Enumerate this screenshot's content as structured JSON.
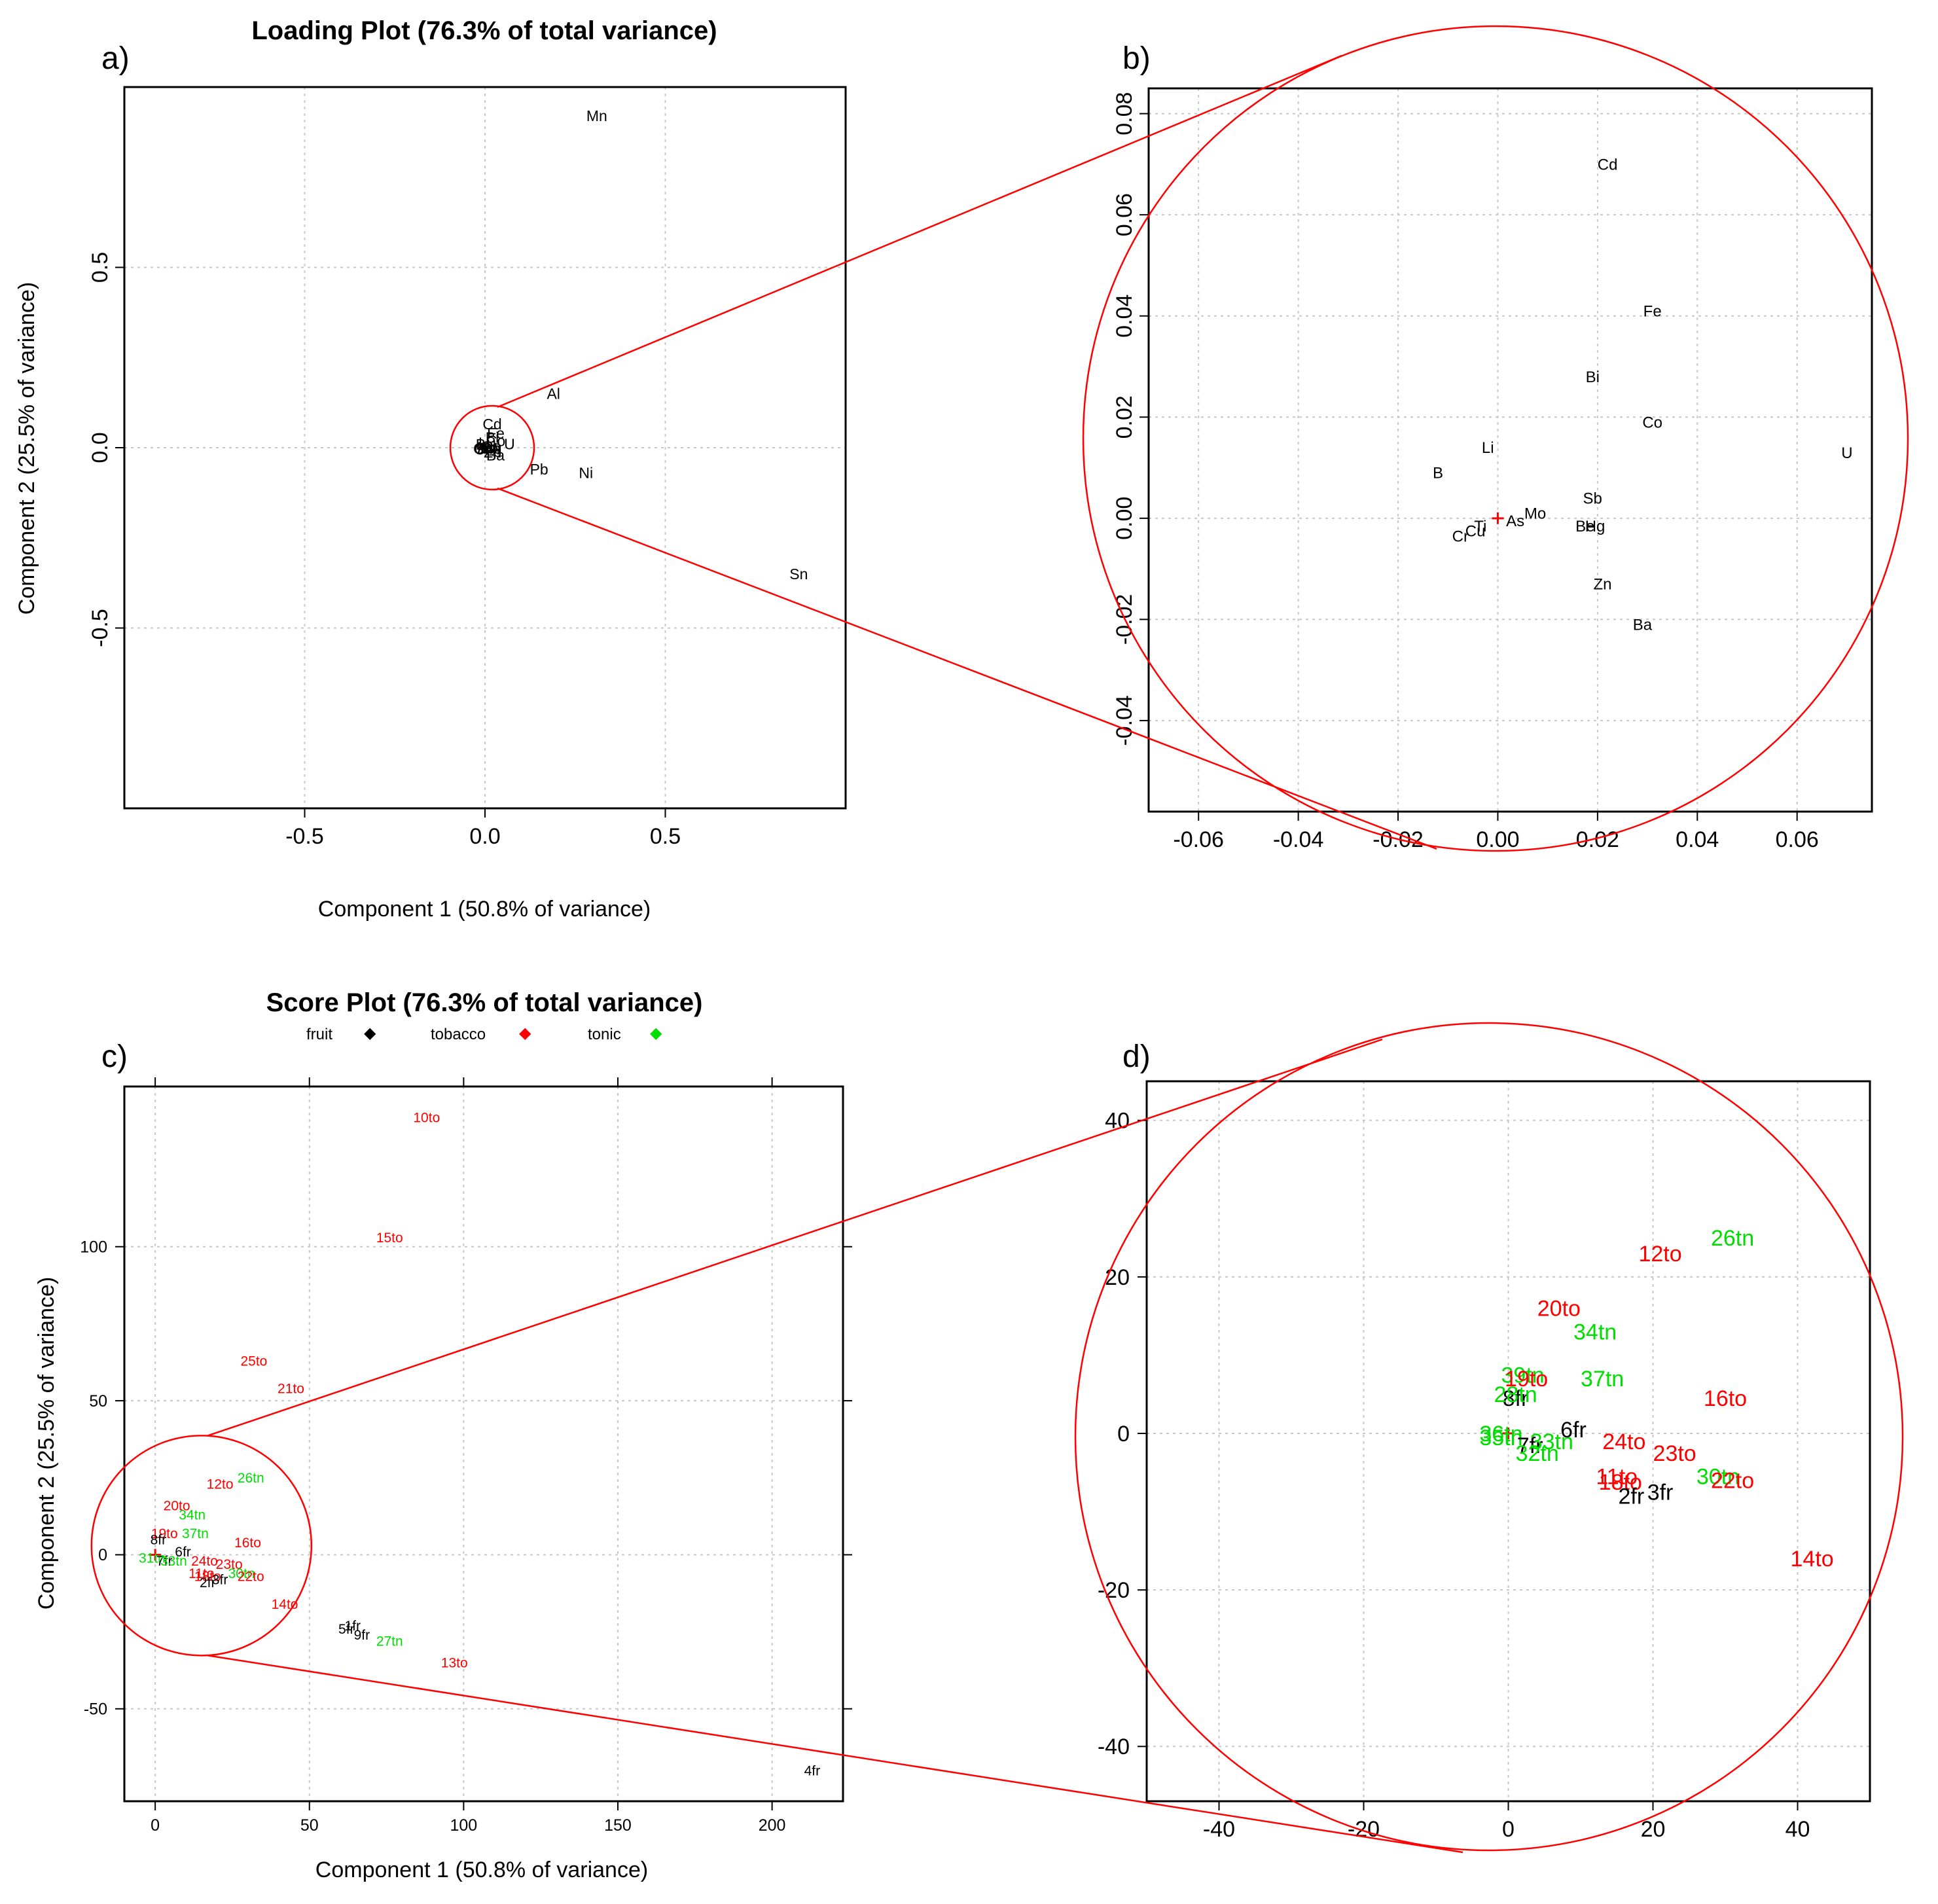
{
  "panel_labels": {
    "a": "a)",
    "b": "b)",
    "c": "c)",
    "d": "d)"
  },
  "colors": {
    "fruit": "#000000",
    "tobacco": "#ff0000",
    "tonic": "#00dd00",
    "zoom": "#ff0000",
    "grid": "#c8c8c8"
  },
  "chart_data": [
    {
      "id": "a",
      "type": "scatter",
      "title": "Loading Plot (76.3% of total variance)",
      "xlabel": "Component 1 (50.8% of variance)",
      "ylabel": "Component 2 (25.5% of variance)",
      "xlim": [
        -1.0,
        1.0
      ],
      "ylim": [
        -1.0,
        1.0
      ],
      "xticks": [
        -0.5,
        0.0,
        0.5
      ],
      "xticklabels": [
        "-0.5",
        "0.0",
        "0.5"
      ],
      "yticks": [
        -0.5,
        0.0,
        0.5
      ],
      "yticklabels": [
        "-0.5",
        "0.0",
        "0.5"
      ],
      "points": [
        {
          "label": "Mn",
          "x": 0.31,
          "y": 0.92
        },
        {
          "label": "Al",
          "x": 0.19,
          "y": 0.15
        },
        {
          "label": "Cd",
          "x": 0.02,
          "y": 0.065
        },
        {
          "label": "Fe",
          "x": 0.03,
          "y": 0.04
        },
        {
          "label": "Bi",
          "x": 0.02,
          "y": 0.028
        },
        {
          "label": "Co",
          "x": 0.03,
          "y": 0.019
        },
        {
          "label": "U",
          "x": 0.068,
          "y": 0.01
        },
        {
          "label": "Li",
          "x": -0.002,
          "y": 0.014
        },
        {
          "label": "B",
          "x": -0.012,
          "y": 0.009
        },
        {
          "label": "Sb",
          "x": 0.019,
          "y": 0.004
        },
        {
          "label": "Mo",
          "x": 0.007,
          "y": 0.001
        },
        {
          "label": "As",
          "x": 0.003,
          "y": -0.001
        },
        {
          "label": "Ti",
          "x": -0.004,
          "y": -0.002
        },
        {
          "label": "Cu",
          "x": -0.006,
          "y": -0.003
        },
        {
          "label": "Cr",
          "x": -0.008,
          "y": -0.004
        },
        {
          "label": "Hg",
          "x": 0.02,
          "y": -0.002
        },
        {
          "label": "Be",
          "x": 0.018,
          "y": -0.002
        },
        {
          "label": "Zn",
          "x": 0.021,
          "y": -0.013
        },
        {
          "label": "Ba",
          "x": 0.029,
          "y": -0.021
        },
        {
          "label": "Pb",
          "x": 0.15,
          "y": -0.06
        },
        {
          "label": "Ni",
          "x": 0.28,
          "y": -0.07
        },
        {
          "label": "Sn",
          "x": 0.87,
          "y": -0.35
        }
      ],
      "origin_marker": {
        "x": 0,
        "y": 0
      }
    },
    {
      "id": "b",
      "type": "scatter",
      "title": "",
      "xlabel": "",
      "ylabel": "",
      "xlim": [
        -0.07,
        0.075
      ],
      "ylim": [
        -0.058,
        0.085
      ],
      "xticks": [
        -0.06,
        -0.04,
        -0.02,
        0.0,
        0.02,
        0.04,
        0.06
      ],
      "xticklabels": [
        "-0.06",
        "-0.04",
        "-0.02",
        "0.00",
        "0.02",
        "0.04",
        "0.06"
      ],
      "yticks": [
        -0.04,
        -0.02,
        0.0,
        0.02,
        0.04,
        0.06,
        0.08
      ],
      "yticklabels": [
        "-0.04",
        "-0.02",
        "0.00",
        "0.02",
        "0.04",
        "0.06",
        "0.08"
      ],
      "points": [
        {
          "label": "Cd",
          "x": 0.022,
          "y": 0.07
        },
        {
          "label": "Fe",
          "x": 0.031,
          "y": 0.041
        },
        {
          "label": "Bi",
          "x": 0.019,
          "y": 0.028
        },
        {
          "label": "Co",
          "x": 0.031,
          "y": 0.019
        },
        {
          "label": "U",
          "x": 0.07,
          "y": 0.013
        },
        {
          "label": "Li",
          "x": -0.002,
          "y": 0.014
        },
        {
          "label": "B",
          "x": -0.012,
          "y": 0.009
        },
        {
          "label": "Sb",
          "x": 0.019,
          "y": 0.004
        },
        {
          "label": "Mo",
          "x": 0.0075,
          "y": 0.001
        },
        {
          "label": "As",
          "x": 0.0035,
          "y": -0.0005
        },
        {
          "label": "Ti",
          "x": -0.0035,
          "y": -0.0015
        },
        {
          "label": "Cu",
          "x": -0.0045,
          "y": -0.0025
        },
        {
          "label": "Cr",
          "x": -0.0075,
          "y": -0.0035
        },
        {
          "label": "Be",
          "x": 0.0175,
          "y": -0.0015
        },
        {
          "label": "Hg",
          "x": 0.0195,
          "y": -0.0015
        },
        {
          "label": "Zn",
          "x": 0.021,
          "y": -0.013
        },
        {
          "label": "Ba",
          "x": 0.029,
          "y": -0.021
        }
      ],
      "origin_marker": {
        "x": 0,
        "y": 0
      }
    },
    {
      "id": "c",
      "type": "scatter",
      "title": "Score Plot (76.3% of total variance)",
      "xlabel": "Component 1 (50.8% of variance)",
      "ylabel": "Component 2 (25.5% of variance)",
      "xlim": [
        -10,
        223
      ],
      "ylim": [
        -80,
        152
      ],
      "xticks": [
        0,
        50,
        100,
        150,
        200
      ],
      "xticklabels": [
        "0",
        "50",
        "100",
        "150",
        "200"
      ],
      "yticks": [
        -50,
        0,
        50,
        100
      ],
      "yticklabels": [
        "-50",
        "0",
        "50",
        "100"
      ],
      "legend": [
        {
          "label": "fruit",
          "group": "fruit"
        },
        {
          "label": "tobacco",
          "group": "tobacco"
        },
        {
          "label": "tonic",
          "group": "tonic"
        }
      ],
      "points": [
        {
          "label": "10to",
          "x": 88,
          "y": 142,
          "group": "tobacco"
        },
        {
          "label": "15to",
          "x": 76,
          "y": 103,
          "group": "tobacco"
        },
        {
          "label": "25to",
          "x": 32,
          "y": 63,
          "group": "tobacco"
        },
        {
          "label": "21to",
          "x": 44,
          "y": 54,
          "group": "tobacco"
        },
        {
          "label": "12to",
          "x": 21,
          "y": 23,
          "group": "tobacco"
        },
        {
          "label": "26tn",
          "x": 31,
          "y": 25,
          "group": "tonic"
        },
        {
          "label": "20to",
          "x": 7,
          "y": 16,
          "group": "tobacco"
        },
        {
          "label": "34tn",
          "x": 12,
          "y": 13,
          "group": "tonic"
        },
        {
          "label": "19to",
          "x": 3,
          "y": 7,
          "group": "tobacco"
        },
        {
          "label": "37tn",
          "x": 13,
          "y": 7,
          "group": "tonic"
        },
        {
          "label": "8fr",
          "x": 1,
          "y": 5,
          "group": "fruit"
        },
        {
          "label": "16to",
          "x": 30,
          "y": 4,
          "group": "tobacco"
        },
        {
          "label": "6fr",
          "x": 9,
          "y": 1,
          "group": "fruit"
        },
        {
          "label": "24to",
          "x": 16,
          "y": -2,
          "group": "tobacco"
        },
        {
          "label": "23to",
          "x": 24,
          "y": -3,
          "group": "tobacco"
        },
        {
          "label": "31tn",
          "x": -1,
          "y": -1,
          "group": "tonic"
        },
        {
          "label": "7fr",
          "x": 3,
          "y": -2,
          "group": "fruit"
        },
        {
          "label": "33tn",
          "x": 6,
          "y": -2,
          "group": "tonic"
        },
        {
          "label": "11to",
          "x": 15,
          "y": -6,
          "group": "tobacco"
        },
        {
          "label": "18to",
          "x": 17,
          "y": -7,
          "group": "tobacco"
        },
        {
          "label": "2fr",
          "x": 17,
          "y": -9,
          "group": "fruit"
        },
        {
          "label": "3fr",
          "x": 21,
          "y": -8,
          "group": "fruit"
        },
        {
          "label": "30tn",
          "x": 28,
          "y": -6,
          "group": "tonic"
        },
        {
          "label": "22to",
          "x": 31,
          "y": -7,
          "group": "tobacco"
        },
        {
          "label": "14to",
          "x": 42,
          "y": -16,
          "group": "tobacco"
        },
        {
          "label": "1fr",
          "x": 64,
          "y": -23,
          "group": "fruit"
        },
        {
          "label": "5fr",
          "x": 62,
          "y": -24,
          "group": "fruit"
        },
        {
          "label": "9fr",
          "x": 67,
          "y": -26,
          "group": "fruit"
        },
        {
          "label": "27tn",
          "x": 76,
          "y": -28,
          "group": "tonic"
        },
        {
          "label": "13to",
          "x": 97,
          "y": -35,
          "group": "tobacco"
        },
        {
          "label": "4fr",
          "x": 213,
          "y": -70,
          "group": "fruit"
        }
      ],
      "origin_marker": {
        "x": 0,
        "y": 0
      }
    },
    {
      "id": "d",
      "type": "scatter",
      "title": "",
      "xlabel": "",
      "ylabel": "",
      "xlim": [
        -50,
        50
      ],
      "ylim": [
        -47,
        45
      ],
      "xticks": [
        -40,
        -20,
        0,
        20,
        40
      ],
      "xticklabels": [
        "-40",
        "-20",
        "0",
        "20",
        "40"
      ],
      "yticks": [
        -40,
        -20,
        0,
        20,
        40
      ],
      "yticklabels": [
        "-40",
        "-20",
        "0",
        "20",
        "40"
      ],
      "points": [
        {
          "label": "26tn",
          "x": 31,
          "y": 25,
          "group": "tonic"
        },
        {
          "label": "12to",
          "x": 21,
          "y": 23,
          "group": "tobacco"
        },
        {
          "label": "20to",
          "x": 7,
          "y": 16,
          "group": "tobacco"
        },
        {
          "label": "34tn",
          "x": 12,
          "y": 13,
          "group": "tonic"
        },
        {
          "label": "39tn",
          "x": 2,
          "y": 7.5,
          "group": "tonic"
        },
        {
          "label": "19to",
          "x": 2.5,
          "y": 7,
          "group": "tobacco"
        },
        {
          "label": "37tn",
          "x": 13,
          "y": 7,
          "group": "tonic"
        },
        {
          "label": "8fr",
          "x": 1,
          "y": 4.5,
          "group": "fruit"
        },
        {
          "label": "28tn",
          "x": 1,
          "y": 5,
          "group": "tonic"
        },
        {
          "label": "16to",
          "x": 30,
          "y": 4.5,
          "group": "tobacco"
        },
        {
          "label": "6fr",
          "x": 9,
          "y": 0.5,
          "group": "fruit"
        },
        {
          "label": "24to",
          "x": 16,
          "y": -1,
          "group": "tobacco"
        },
        {
          "label": "23to",
          "x": 23,
          "y": -2.5,
          "group": "tobacco"
        },
        {
          "label": "36tn",
          "x": -1,
          "y": 0,
          "group": "tonic"
        },
        {
          "label": "35tn",
          "x": -1,
          "y": -0.5,
          "group": "tonic"
        },
        {
          "label": "7fr",
          "x": 3,
          "y": -1.5,
          "group": "fruit"
        },
        {
          "label": "33tn",
          "x": 6,
          "y": -1,
          "group": "tonic"
        },
        {
          "label": "32tn",
          "x": 4,
          "y": -2.5,
          "group": "tonic"
        },
        {
          "label": "11to",
          "x": 15,
          "y": -5.5,
          "group": "tobacco"
        },
        {
          "label": "18to",
          "x": 15.5,
          "y": -6.2,
          "group": "tobacco"
        },
        {
          "label": "2fr",
          "x": 17,
          "y": -8,
          "group": "fruit"
        },
        {
          "label": "3fr",
          "x": 21,
          "y": -7.5,
          "group": "fruit"
        },
        {
          "label": "30tn",
          "x": 29,
          "y": -5.5,
          "group": "tonic"
        },
        {
          "label": "22to",
          "x": 31,
          "y": -6,
          "group": "tobacco"
        },
        {
          "label": "14to",
          "x": 42,
          "y": -16,
          "group": "tobacco"
        }
      ],
      "origin_marker": {
        "x": 0,
        "y": 0
      }
    }
  ]
}
